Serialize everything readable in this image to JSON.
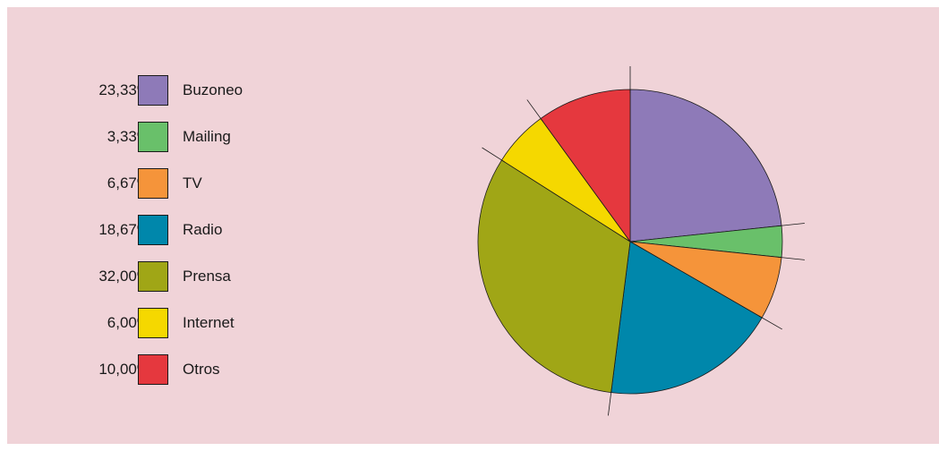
{
  "chart_data": {
    "type": "pie",
    "slices": [
      {
        "label": "Buzoneo",
        "pct_text": "23,33%",
        "value": 23.33,
        "color": "#8e7ab8"
      },
      {
        "label": "Mailing",
        "pct_text": "3,33%",
        "value": 3.33,
        "color": "#69c06a"
      },
      {
        "label": "TV",
        "pct_text": "6,67%",
        "value": 6.67,
        "color": "#f5943a"
      },
      {
        "label": "Radio",
        "pct_text": "18,67%",
        "value": 18.67,
        "color": "#0087ab"
      },
      {
        "label": "Prensa",
        "pct_text": "32,00%",
        "value": 32.0,
        "color": "#a0a616"
      },
      {
        "label": "Internet",
        "pct_text": "6,00%",
        "value": 6.0,
        "color": "#f5d800"
      },
      {
        "label": "Otros",
        "pct_text": "10,00%",
        "value": 10.0,
        "color": "#e5383e"
      }
    ],
    "legend_position": "left",
    "start": "top",
    "direction": "clockwise"
  },
  "colors": {
    "background": "#f0d3d8",
    "outline": "#1a1a1a"
  }
}
